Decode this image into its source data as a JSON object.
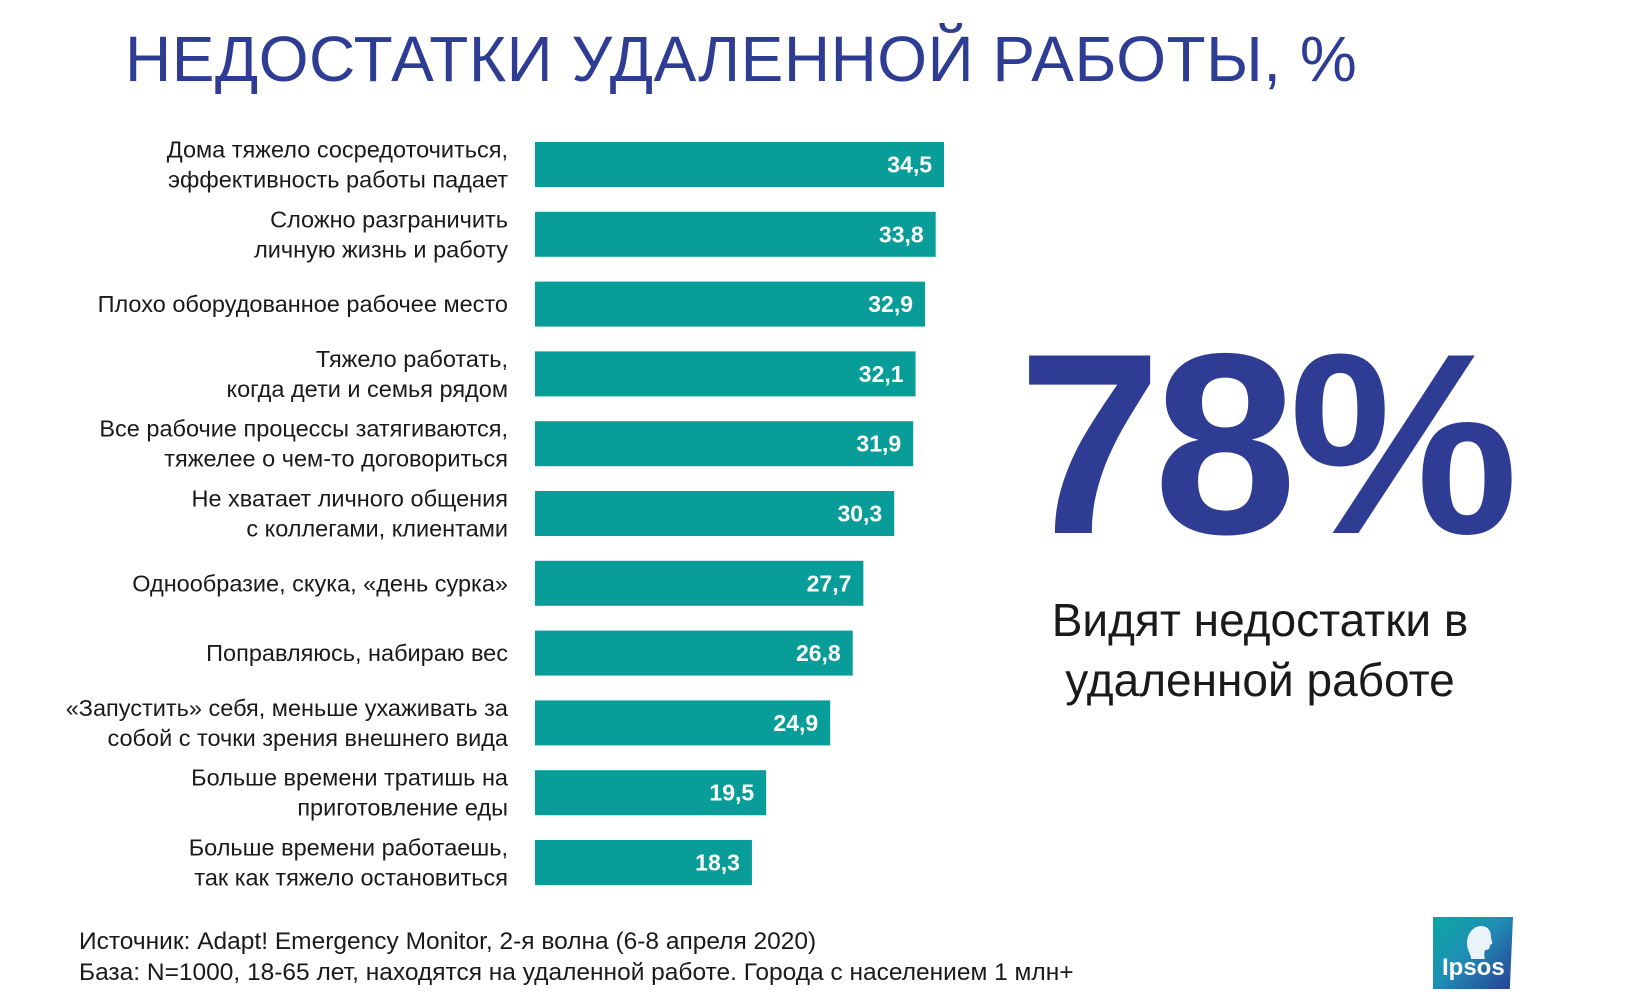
{
  "title": "НЕДОСТАТКИ УДАЛЕННОЙ РАБОТЫ, %",
  "colors": {
    "bar": "#089d98",
    "accent": "#2e3d93",
    "text": "#1a1a1a"
  },
  "chart_data": {
    "type": "bar",
    "orientation": "horizontal",
    "categories": [
      [
        "Дома тяжело сосредоточиться,",
        "эффективность работы падает"
      ],
      [
        "Сложно разграничить",
        "личную жизнь и работу"
      ],
      [
        "Плохо оборудованное рабочее место"
      ],
      [
        "Тяжело работать,",
        "когда дети и семья рядом"
      ],
      [
        "Все рабочие процессы затягиваются,",
        "тяжелее о чем-то договориться"
      ],
      [
        "Не хватает личного общения",
        "с коллегами, клиентами"
      ],
      [
        "Однообразие, скука, «день сурка»"
      ],
      [
        "Поправляюсь, набираю вес"
      ],
      [
        "«Запустить» себя, меньше ухаживать за",
        "собой с точки зрения внешнего вида"
      ],
      [
        "Больше времени тратишь на",
        "приготовление еды"
      ],
      [
        "Больше времени работаешь,",
        "так как тяжело остановиться"
      ]
    ],
    "values": [
      34.5,
      33.8,
      32.9,
      32.1,
      31.9,
      30.3,
      27.7,
      26.8,
      24.9,
      19.5,
      18.3
    ],
    "value_labels": [
      "34,5",
      "33,8",
      "32,9",
      "32,1",
      "31,9",
      "30,3",
      "27,7",
      "26,8",
      "24,9",
      "19,5",
      "18,3"
    ],
    "xlim": [
      0,
      34.5
    ],
    "grid": false,
    "legend": "none"
  },
  "highlight": {
    "value": "78%",
    "caption_line1": "Видят недостатки в",
    "caption_line2": "удаленной работе"
  },
  "footer": {
    "source": "Источник: Adapt! Emergency Monitor, 2-я волна (6-8 апреля 2020)",
    "base": "База: N=1000, 18-65 лет, находятся на удаленной работе. Города с населением 1 млн+"
  },
  "logo": {
    "text": "Ipsos"
  }
}
